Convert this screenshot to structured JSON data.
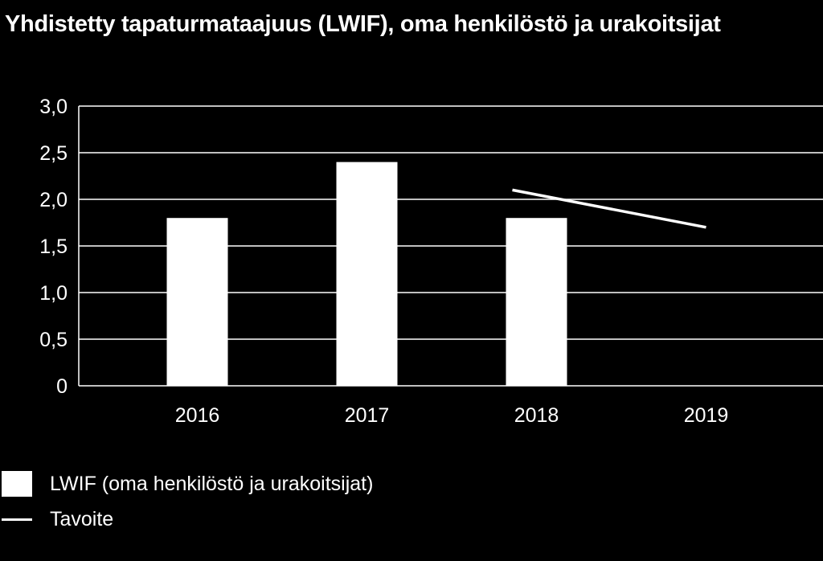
{
  "chart_data": {
    "type": "bar",
    "title": "Yhdistetty tapaturmataajuus (LWIF), oma henkilöstö ja urakoitsijat",
    "categories": [
      "2016",
      "2017",
      "2018",
      "2019"
    ],
    "series": [
      {
        "name": "LWIF (oma henkilöstö ja urakoitsijat)",
        "kind": "bar",
        "values": [
          1.8,
          2.4,
          1.8,
          null
        ]
      },
      {
        "name": "Tavoite",
        "kind": "line",
        "values": [
          null,
          null,
          2.1,
          1.7
        ]
      }
    ],
    "y_ticks": [
      "0",
      "0,5",
      "1,0",
      "1,5",
      "2,0",
      "2,5",
      "3,0"
    ],
    "ylim": [
      0,
      3
    ],
    "grid": true,
    "legend_position": "bottom-left",
    "colors": {
      "background": "#000000",
      "bar": "#ffffff",
      "line": "#ffffff",
      "grid": "#ffffff"
    }
  }
}
